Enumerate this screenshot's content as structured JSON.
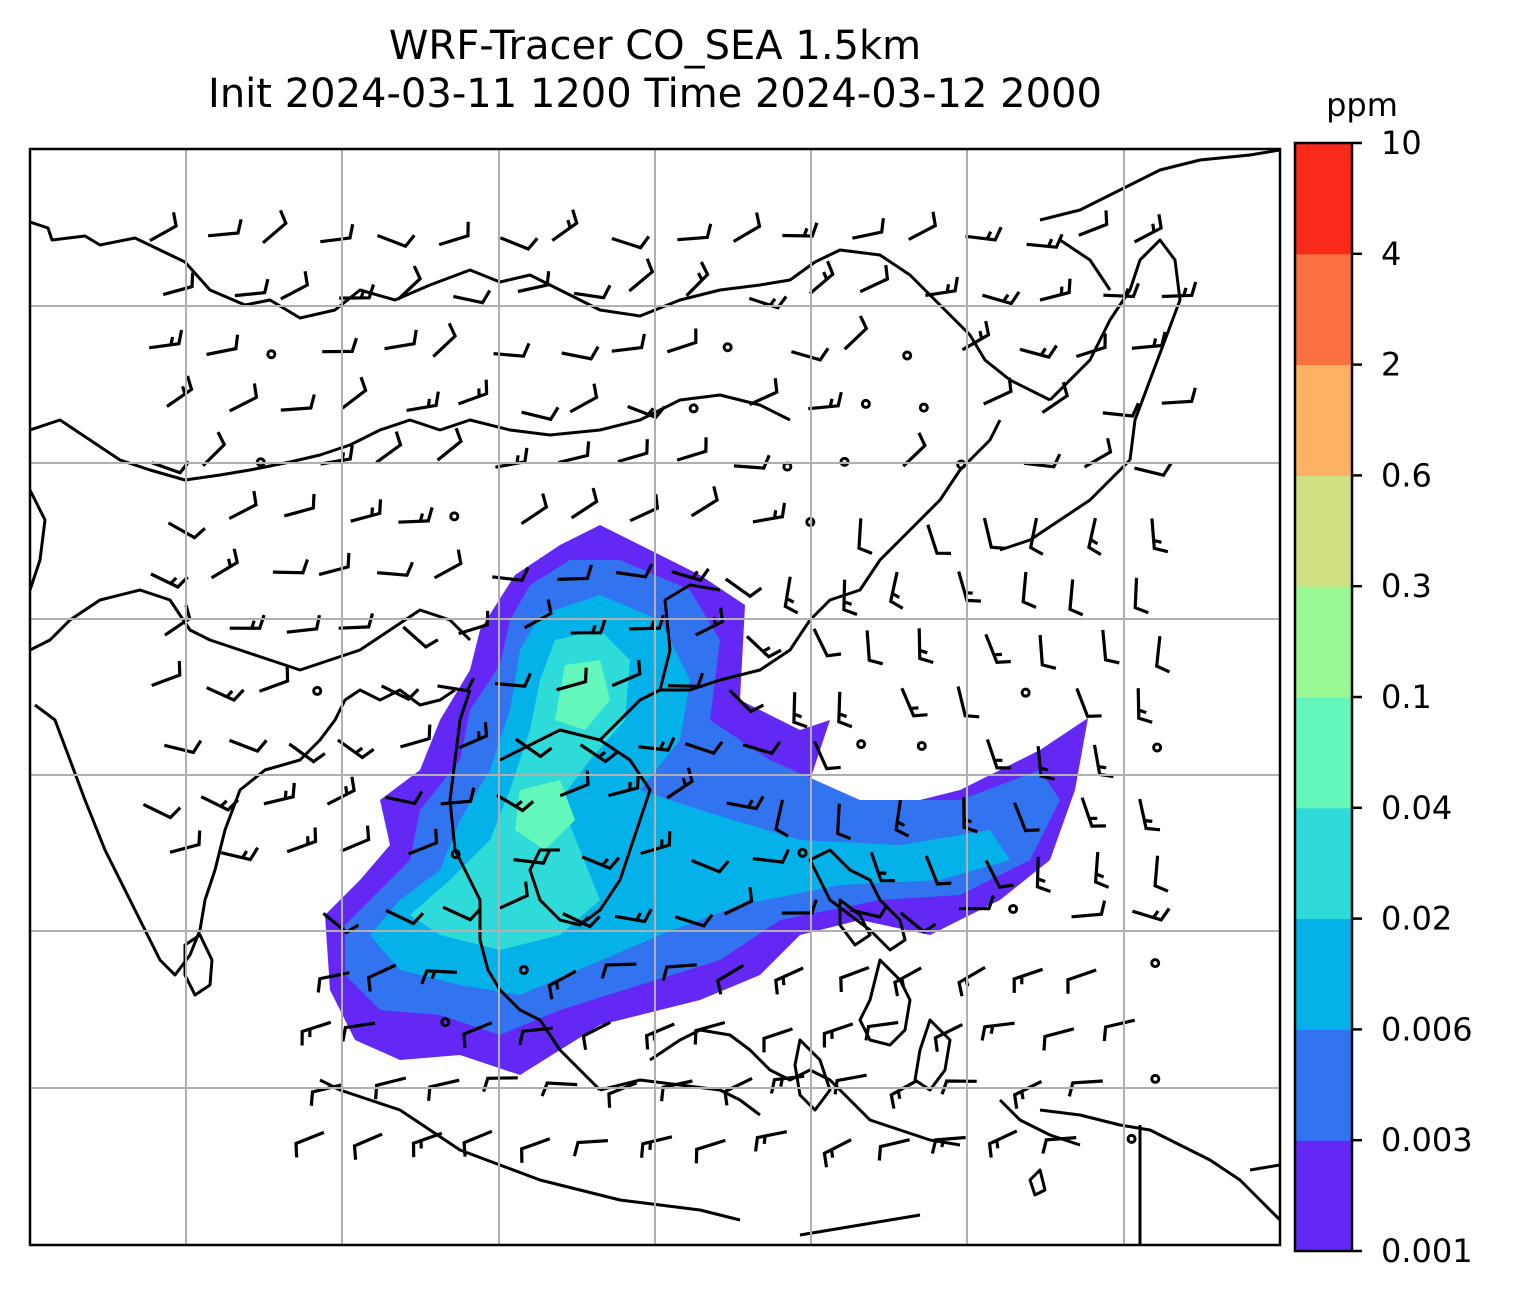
{
  "title": {
    "line1": "WRF-Tracer CO_SEA 1.5km",
    "line2": "Init 2024-03-11 1200 Time 2024-03-12 2000"
  },
  "colorbar": {
    "unit": "ppm",
    "levels": [
      "0.001",
      "0.003",
      "0.006",
      "0.02",
      "0.04",
      "0.1",
      "0.3",
      "0.6",
      "2",
      "4",
      "10"
    ],
    "colors": [
      "#6428f5",
      "#3273f0",
      "#04b2e9",
      "#2edbd8",
      "#64f7bc",
      "#98f893",
      "#cfe082",
      "#fdb163",
      "#fc7140",
      "#fa2a1a"
    ]
  },
  "map": {
    "field": "CO tracer concentration",
    "overlay": "wind barbs",
    "gridlines": true,
    "coastline_color": "#000000",
    "gridline_color": "#b0b0b0"
  }
}
